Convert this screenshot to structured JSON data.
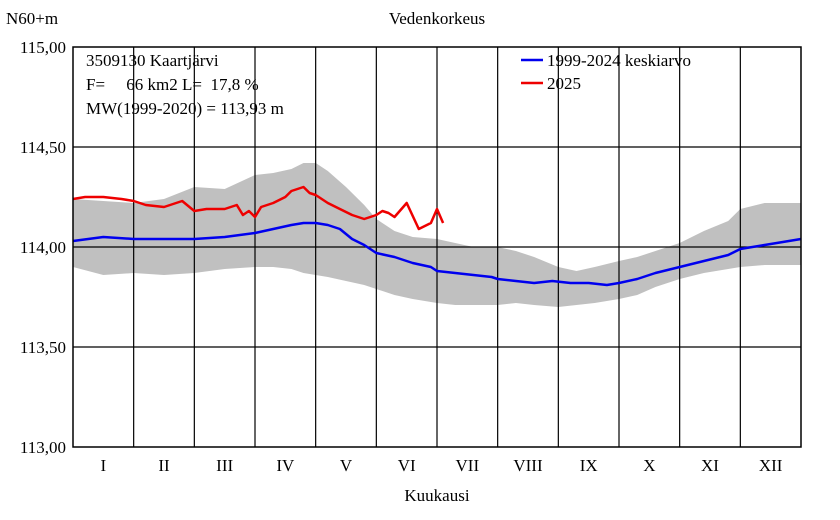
{
  "chart_data": {
    "type": "line",
    "title": "Vedenkorkeus",
    "ylabel": "N60+m",
    "xlabel": "Kuukausi",
    "ylim": [
      113.0,
      115.0
    ],
    "y_ticks": [
      "113,00",
      "113,50",
      "114,00",
      "114,50",
      "115,00"
    ],
    "y_tick_values": [
      113.0,
      113.5,
      114.0,
      114.5,
      115.0
    ],
    "x_unit": "month (1.0 = 1 January, 13.0 = 31 December)",
    "xlim": [
      1.0,
      13.0
    ],
    "months": [
      "I",
      "II",
      "III",
      "IV",
      "V",
      "VI",
      "VII",
      "VIII",
      "IX",
      "X",
      "XI",
      "XII"
    ],
    "info_lines": [
      "3509130 Kaartjärvi",
      "F=     66 km2 L=  17,8 %",
      "MW(1999-2020) = 113,93 m"
    ],
    "legend_position": "top-right",
    "grid": true,
    "series": [
      {
        "name": "1999-2024 keskiarvo",
        "color": "#0000ee",
        "x": [
          1.0,
          1.5,
          2.0,
          2.5,
          3.0,
          3.5,
          4.0,
          4.3,
          4.6,
          4.8,
          5.0,
          5.2,
          5.4,
          5.6,
          5.8,
          6.0,
          6.3,
          6.6,
          6.9,
          7.0,
          7.3,
          7.6,
          7.9,
          8.0,
          8.3,
          8.6,
          8.9,
          9.2,
          9.5,
          9.8,
          10.0,
          10.3,
          10.6,
          11.0,
          11.4,
          11.8,
          12.0,
          12.4,
          12.8,
          13.0
        ],
        "y": [
          114.03,
          114.05,
          114.04,
          114.04,
          114.04,
          114.05,
          114.07,
          114.09,
          114.11,
          114.12,
          114.12,
          114.11,
          114.09,
          114.04,
          114.01,
          113.97,
          113.95,
          113.92,
          113.9,
          113.88,
          113.87,
          113.86,
          113.85,
          113.84,
          113.83,
          113.82,
          113.83,
          113.82,
          113.82,
          113.81,
          113.82,
          113.84,
          113.87,
          113.9,
          113.93,
          113.96,
          113.99,
          114.01,
          114.03,
          114.04
        ]
      },
      {
        "name": "2025",
        "color": "#ee0000",
        "x": [
          1.0,
          1.2,
          1.5,
          1.8,
          2.0,
          2.2,
          2.5,
          2.8,
          3.0,
          3.2,
          3.5,
          3.7,
          3.8,
          3.9,
          4.0,
          4.1,
          4.3,
          4.5,
          4.6,
          4.8,
          4.9,
          5.0,
          5.2,
          5.4,
          5.6,
          5.8,
          6.0,
          6.1,
          6.2,
          6.3,
          6.5,
          6.7,
          6.9,
          7.0,
          7.1
        ],
        "y": [
          114.24,
          114.25,
          114.25,
          114.24,
          114.23,
          114.21,
          114.2,
          114.23,
          114.18,
          114.19,
          114.19,
          114.21,
          114.16,
          114.18,
          114.15,
          114.2,
          114.22,
          114.25,
          114.28,
          114.3,
          114.27,
          114.26,
          114.22,
          114.19,
          114.16,
          114.14,
          114.16,
          114.18,
          114.17,
          114.15,
          114.22,
          114.09,
          114.12,
          114.19,
          114.12
        ]
      }
    ],
    "band": {
      "name": "1999-2024 min-max",
      "color": "#c0c0c0",
      "x": [
        1.0,
        1.5,
        2.0,
        2.5,
        3.0,
        3.5,
        4.0,
        4.3,
        4.6,
        4.8,
        5.0,
        5.2,
        5.5,
        5.8,
        6.0,
        6.3,
        6.6,
        7.0,
        7.3,
        7.6,
        8.0,
        8.3,
        8.6,
        9.0,
        9.3,
        9.6,
        10.0,
        10.3,
        10.6,
        11.0,
        11.4,
        11.8,
        12.0,
        12.4,
        12.8,
        13.0
      ],
      "max": [
        114.24,
        114.23,
        114.22,
        114.24,
        114.3,
        114.29,
        114.36,
        114.37,
        114.39,
        114.42,
        114.42,
        114.38,
        114.3,
        114.21,
        114.14,
        114.08,
        114.05,
        114.04,
        114.02,
        114.0,
        114.0,
        113.98,
        113.95,
        113.9,
        113.88,
        113.9,
        113.93,
        113.95,
        113.98,
        114.02,
        114.08,
        114.13,
        114.19,
        114.22,
        114.22,
        114.22
      ],
      "min": [
        113.9,
        113.86,
        113.87,
        113.86,
        113.87,
        113.89,
        113.9,
        113.9,
        113.89,
        113.87,
        113.86,
        113.85,
        113.83,
        113.81,
        113.79,
        113.76,
        113.74,
        113.72,
        113.71,
        113.71,
        113.71,
        113.72,
        113.71,
        113.7,
        113.71,
        113.72,
        113.74,
        113.76,
        113.8,
        113.84,
        113.87,
        113.89,
        113.9,
        113.91,
        113.91,
        113.91
      ]
    }
  }
}
